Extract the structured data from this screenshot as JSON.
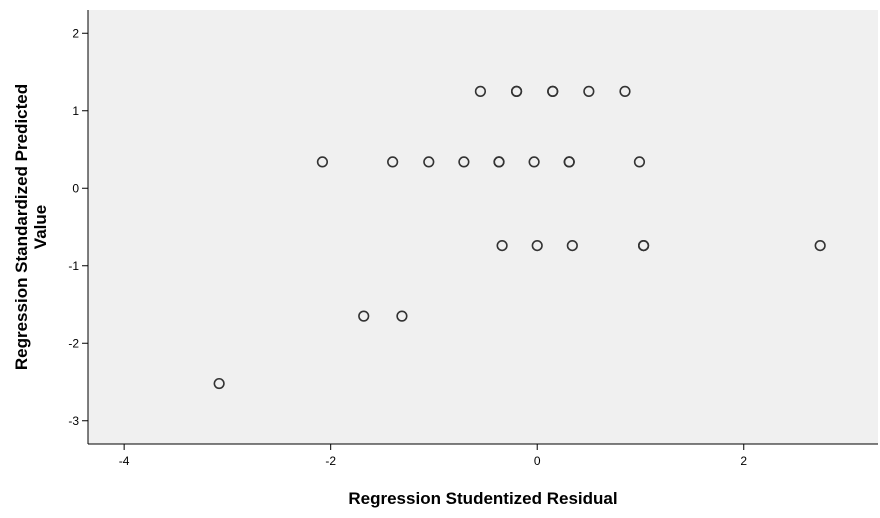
{
  "chart_data": {
    "type": "scatter",
    "title": "",
    "xlabel": "Regression Studentized Residual",
    "ylabel": [
      "Regression Standardized Predicted",
      "Value"
    ],
    "xlim": [
      -4.35,
      3.3
    ],
    "ylim": [
      -3.3,
      2.3
    ],
    "xticks": [
      -4,
      -2,
      0,
      2
    ],
    "yticks": [
      -3,
      -2,
      -1,
      0,
      1,
      2
    ],
    "grid": false,
    "legend": "none",
    "colors": {
      "plot_bg": "#f0f0f0",
      "point_stroke": "#333333",
      "axis": "#000000"
    },
    "points": [
      {
        "x": -0.55,
        "y": 1.25
      },
      {
        "x": -0.2,
        "y": 1.25
      },
      {
        "x": -0.2,
        "y": 1.25
      },
      {
        "x": 0.15,
        "y": 1.25
      },
      {
        "x": 0.15,
        "y": 1.25
      },
      {
        "x": 0.5,
        "y": 1.25
      },
      {
        "x": 0.85,
        "y": 1.25
      },
      {
        "x": -2.08,
        "y": 0.34
      },
      {
        "x": -1.4,
        "y": 0.34
      },
      {
        "x": -1.05,
        "y": 0.34
      },
      {
        "x": -0.71,
        "y": 0.34
      },
      {
        "x": -0.37,
        "y": 0.34
      },
      {
        "x": -0.37,
        "y": 0.34
      },
      {
        "x": -0.03,
        "y": 0.34
      },
      {
        "x": 0.31,
        "y": 0.34
      },
      {
        "x": 0.31,
        "y": 0.34
      },
      {
        "x": 0.99,
        "y": 0.34
      },
      {
        "x": -0.34,
        "y": -0.74
      },
      {
        "x": 0.0,
        "y": -0.74
      },
      {
        "x": 0.34,
        "y": -0.74
      },
      {
        "x": 1.03,
        "y": -0.74
      },
      {
        "x": 1.03,
        "y": -0.74
      },
      {
        "x": 2.74,
        "y": -0.74
      },
      {
        "x": -1.68,
        "y": -1.65
      },
      {
        "x": -1.31,
        "y": -1.65
      },
      {
        "x": -3.08,
        "y": -2.52
      }
    ]
  }
}
